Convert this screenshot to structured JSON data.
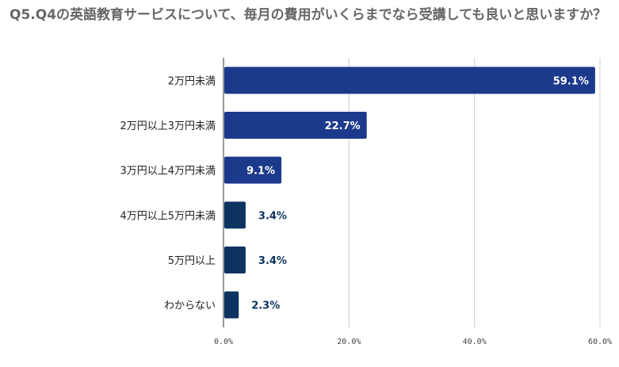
{
  "title": "Q5.Q4の英語教育サービスについて、毎月の費用がいくらまでなら受講しても良いと思いますか？",
  "colors": {
    "primary": "#1c3a8c",
    "secondary": "#0d3360",
    "label_outside": "#0d3360",
    "grid": "#cccccc"
  },
  "chart_data": {
    "type": "bar",
    "orientation": "horizontal",
    "title": "Q5.Q4の英語教育サービスについて、毎月の費用がいくらまでなら受講しても良いと思いますか？",
    "categories": [
      "2万円未満",
      "2万円以上3万円未満",
      "3万円以上4万円未満",
      "4万円以上5万円未満",
      "5万円以上",
      "わからない"
    ],
    "values": [
      59.1,
      22.7,
      9.1,
      3.4,
      3.4,
      2.3
    ],
    "data_labels": [
      "59.1%",
      "22.7%",
      "9.1%",
      "3.4%",
      "3.4%",
      "2.3%"
    ],
    "xlim": [
      0,
      60
    ],
    "x_ticks": [
      0,
      20,
      40,
      60
    ],
    "x_tick_labels": [
      "0.0%",
      "20.0%",
      "40.0%",
      "60.0%"
    ],
    "xlabel": "",
    "ylabel": "",
    "grid": true,
    "legend": "none"
  }
}
